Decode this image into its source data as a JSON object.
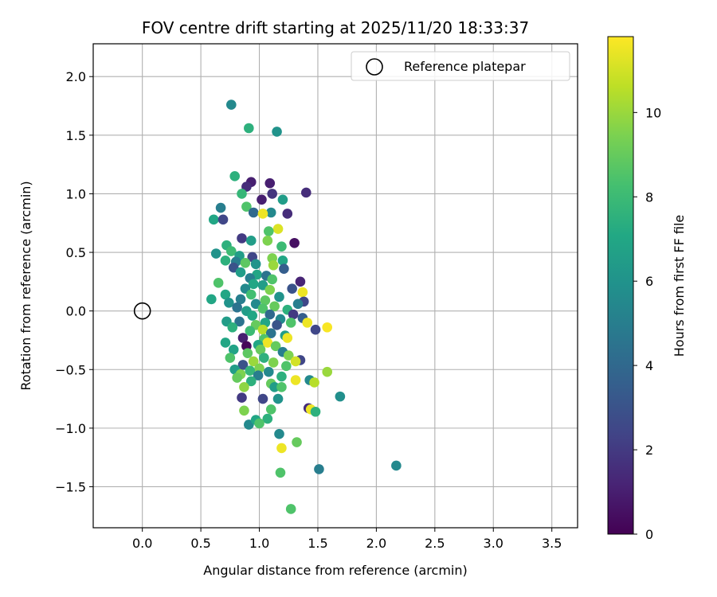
{
  "chart_data": {
    "type": "scatter",
    "title": "FOV centre drift starting at 2025/11/20 18:33:37",
    "xlabel": "Angular distance from reference (arcmin)",
    "ylabel": "Rotation from reference (arcmin)",
    "xlim": [
      -0.42,
      3.72
    ],
    "ylim": [
      -1.85,
      2.28
    ],
    "xticks": [
      0.0,
      0.5,
      1.0,
      1.5,
      2.0,
      2.5,
      3.0,
      3.5
    ],
    "xtick_labels": [
      "0.0",
      "0.5",
      "1.0",
      "1.5",
      "2.0",
      "2.5",
      "3.0",
      "3.5"
    ],
    "yticks": [
      -1.5,
      -1.0,
      -0.5,
      0.0,
      0.5,
      1.0,
      1.5,
      2.0
    ],
    "ytick_labels": [
      "−1.5",
      "−1.0",
      "−0.5",
      "0.0",
      "0.5",
      "1.0",
      "1.5",
      "2.0"
    ],
    "grid": true,
    "legend": {
      "position": "top-right",
      "entries": [
        "Reference platepar"
      ]
    },
    "reference_point": {
      "x": 0.0,
      "y": 0.0,
      "label": "Reference platepar"
    },
    "colorbar": {
      "label": "Hours from first FF file",
      "colormap": "viridis",
      "range": [
        0,
        11.8
      ],
      "ticks": [
        0,
        2,
        4,
        6,
        8,
        10
      ],
      "tick_labels": [
        "0",
        "2",
        "4",
        "6",
        "8",
        "10"
      ]
    },
    "points": [
      [
        0.76,
        1.76,
        5.5
      ],
      [
        0.91,
        1.56,
        7.5
      ],
      [
        1.15,
        1.53,
        6.0
      ],
      [
        0.79,
        1.15,
        7.5
      ],
      [
        0.93,
        1.1,
        1.0
      ],
      [
        1.09,
        1.09,
        1.0
      ],
      [
        0.89,
        1.06,
        1.5
      ],
      [
        0.85,
        1.0,
        7.8
      ],
      [
        1.11,
        1.0,
        1.8
      ],
      [
        1.2,
        0.95,
        6.5
      ],
      [
        1.4,
        1.01,
        1.5
      ],
      [
        1.02,
        0.95,
        1.0
      ],
      [
        0.67,
        0.88,
        5.0
      ],
      [
        0.89,
        0.89,
        8.5
      ],
      [
        0.95,
        0.84,
        4.0
      ],
      [
        1.1,
        0.84,
        5.5
      ],
      [
        1.24,
        0.83,
        1.5
      ],
      [
        1.03,
        0.83,
        11.5
      ],
      [
        0.61,
        0.78,
        7.0
      ],
      [
        0.69,
        0.78,
        2.5
      ],
      [
        1.16,
        0.7,
        11.2
      ],
      [
        1.08,
        0.68,
        8.5
      ],
      [
        0.85,
        0.62,
        2.0
      ],
      [
        0.93,
        0.6,
        6.5
      ],
      [
        1.07,
        0.6,
        9.5
      ],
      [
        1.3,
        0.58,
        0.5
      ],
      [
        1.19,
        0.55,
        8.0
      ],
      [
        0.72,
        0.56,
        7.5
      ],
      [
        0.63,
        0.49,
        6.0
      ],
      [
        0.76,
        0.51,
        8.0
      ],
      [
        0.83,
        0.47,
        6.5
      ],
      [
        0.94,
        0.46,
        2.5
      ],
      [
        1.11,
        0.45,
        9.5
      ],
      [
        1.2,
        0.43,
        7.0
      ],
      [
        0.71,
        0.43,
        7.5
      ],
      [
        0.8,
        0.42,
        5.0
      ],
      [
        0.88,
        0.41,
        8.8
      ],
      [
        0.97,
        0.4,
        6.0
      ],
      [
        1.12,
        0.39,
        10.0
      ],
      [
        0.78,
        0.37,
        3.0
      ],
      [
        1.21,
        0.36,
        3.5
      ],
      [
        0.84,
        0.33,
        6.5
      ],
      [
        0.98,
        0.31,
        7.0
      ],
      [
        1.06,
        0.3,
        4.5
      ],
      [
        0.92,
        0.28,
        5.0
      ],
      [
        1.11,
        0.27,
        8.5
      ],
      [
        0.65,
        0.24,
        8.5
      ],
      [
        1.35,
        0.25,
        1.2
      ],
      [
        0.95,
        0.23,
        7.0
      ],
      [
        1.03,
        0.22,
        6.5
      ],
      [
        0.88,
        0.19,
        5.5
      ],
      [
        1.28,
        0.19,
        3.0
      ],
      [
        1.09,
        0.18,
        9.5
      ],
      [
        0.71,
        0.14,
        7.0
      ],
      [
        1.37,
        0.16,
        11.5
      ],
      [
        0.93,
        0.14,
        8.2
      ],
      [
        1.17,
        0.12,
        6.0
      ],
      [
        0.59,
        0.1,
        7.0
      ],
      [
        0.84,
        0.1,
        5.0
      ],
      [
        1.05,
        0.09,
        8.8
      ],
      [
        1.38,
        0.08,
        2.5
      ],
      [
        0.74,
        0.07,
        6.0
      ],
      [
        0.97,
        0.06,
        5.5
      ],
      [
        1.33,
        0.06,
        5.0
      ],
      [
        1.13,
        0.04,
        9.0
      ],
      [
        0.81,
        0.03,
        4.5
      ],
      [
        1.03,
        0.02,
        8.5
      ],
      [
        1.24,
        0.01,
        7.5
      ],
      [
        0.89,
        0.0,
        6.5
      ],
      [
        1.29,
        -0.03,
        2.0
      ],
      [
        1.09,
        -0.03,
        4.0
      ],
      [
        0.94,
        -0.04,
        7.0
      ],
      [
        1.18,
        -0.07,
        5.5
      ],
      [
        0.72,
        -0.09,
        6.5
      ],
      [
        1.37,
        -0.06,
        3.5
      ],
      [
        1.41,
        -0.1,
        11.5
      ],
      [
        0.83,
        -0.09,
        4.5
      ],
      [
        1.05,
        -0.1,
        7.0
      ],
      [
        1.27,
        -0.1,
        8.5
      ],
      [
        0.97,
        -0.12,
        9.0
      ],
      [
        1.15,
        -0.12,
        3.0
      ],
      [
        0.77,
        -0.14,
        7.5
      ],
      [
        1.03,
        -0.16,
        10.5
      ],
      [
        1.58,
        -0.14,
        11.7
      ],
      [
        1.48,
        -0.16,
        2.5
      ],
      [
        0.92,
        -0.17,
        8.0
      ],
      [
        1.1,
        -0.19,
        4.5
      ],
      [
        1.22,
        -0.21,
        6.5
      ],
      [
        0.86,
        -0.23,
        1.0
      ],
      [
        1.24,
        -0.23,
        11.5
      ],
      [
        1.04,
        -0.24,
        8.5
      ],
      [
        0.71,
        -0.27,
        7.0
      ],
      [
        1.07,
        -0.27,
        11.5
      ],
      [
        0.99,
        -0.29,
        7.0
      ],
      [
        1.14,
        -0.3,
        9.0
      ],
      [
        0.89,
        -0.3,
        0.2
      ],
      [
        0.78,
        -0.33,
        6.8
      ],
      [
        1.01,
        -0.33,
        9.0
      ],
      [
        1.2,
        -0.35,
        5.0
      ],
      [
        0.9,
        -0.36,
        8.8
      ],
      [
        1.25,
        -0.38,
        9.5
      ],
      [
        0.75,
        -0.4,
        8.5
      ],
      [
        1.04,
        -0.4,
        7.5
      ],
      [
        1.35,
        -0.42,
        2.5
      ],
      [
        1.31,
        -0.43,
        11.0
      ],
      [
        0.95,
        -0.43,
        10.0
      ],
      [
        1.12,
        -0.44,
        9.5
      ],
      [
        0.86,
        -0.46,
        3.0
      ],
      [
        1.23,
        -0.47,
        8.5
      ],
      [
        1.0,
        -0.49,
        9.5
      ],
      [
        0.79,
        -0.5,
        6.5
      ],
      [
        0.92,
        -0.51,
        7.8
      ],
      [
        1.08,
        -0.52,
        5.5
      ],
      [
        1.58,
        -0.52,
        10.0
      ],
      [
        0.84,
        -0.54,
        9.5
      ],
      [
        0.99,
        -0.55,
        5.0
      ],
      [
        1.19,
        -0.56,
        7.5
      ],
      [
        0.81,
        -0.57,
        9.0
      ],
      [
        1.31,
        -0.59,
        11.5
      ],
      [
        1.43,
        -0.59,
        5.5
      ],
      [
        1.47,
        -0.61,
        10.5
      ],
      [
        0.93,
        -0.6,
        7.5
      ],
      [
        1.1,
        -0.62,
        9.0
      ],
      [
        0.87,
        -0.65,
        9.8
      ],
      [
        1.13,
        -0.65,
        6.5
      ],
      [
        1.19,
        -0.65,
        8.5
      ],
      [
        1.69,
        -0.73,
        5.8
      ],
      [
        0.85,
        -0.74,
        2.0
      ],
      [
        1.03,
        -0.75,
        2.5
      ],
      [
        1.16,
        -0.75,
        6.0
      ],
      [
        1.42,
        -0.83,
        1.5
      ],
      [
        1.44,
        -0.84,
        11.5
      ],
      [
        1.48,
        -0.86,
        7.5
      ],
      [
        0.87,
        -0.85,
        9.5
      ],
      [
        1.1,
        -0.84,
        8.5
      ],
      [
        0.91,
        -0.97,
        5.5
      ],
      [
        0.97,
        -0.93,
        7.0
      ],
      [
        1.07,
        -0.92,
        7.5
      ],
      [
        1.0,
        -0.96,
        8.5
      ],
      [
        1.17,
        -1.05,
        5.5
      ],
      [
        1.32,
        -1.12,
        9.0
      ],
      [
        1.19,
        -1.17,
        11.5
      ],
      [
        2.17,
        -1.32,
        5.5
      ],
      [
        1.51,
        -1.35,
        5.0
      ],
      [
        1.18,
        -1.38,
        8.5
      ],
      [
        1.27,
        -1.69,
        8.5
      ]
    ]
  }
}
